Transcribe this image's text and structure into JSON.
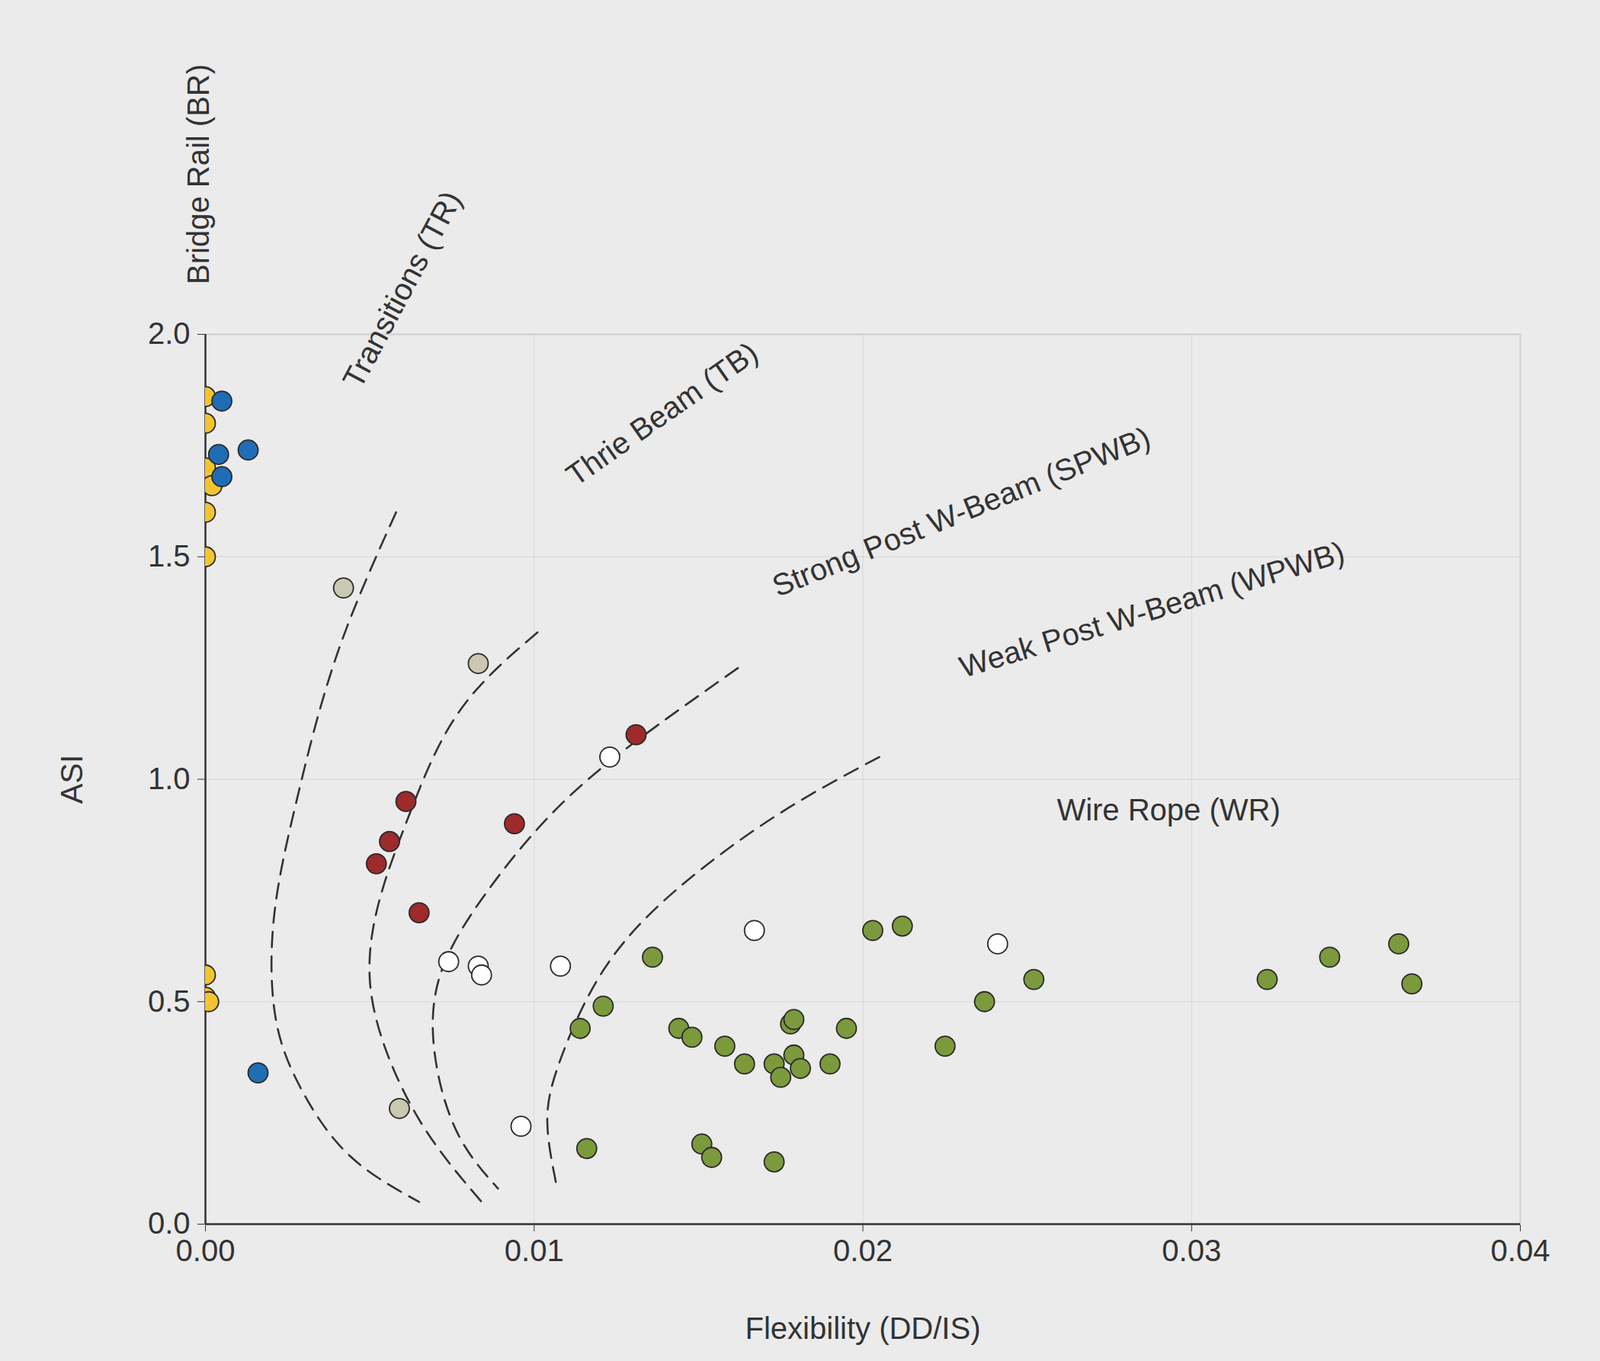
{
  "chart_data": {
    "type": "scatter",
    "x_label": "Flexibility (DD/IS)",
    "y_label": "ASI",
    "xlim": [
      0,
      0.04
    ],
    "ylim": [
      0,
      2.0
    ],
    "xticks": [
      {
        "value": 0,
        "label": "0.00"
      },
      {
        "value": 0.01,
        "label": "0.01"
      },
      {
        "value": 0.02,
        "label": "0.02"
      },
      {
        "value": 0.03,
        "label": "0.03"
      },
      {
        "value": 0.04,
        "label": "0.04"
      }
    ],
    "yticks": [
      {
        "value": 0,
        "label": "0.0"
      },
      {
        "value": 0.5,
        "label": "0.5"
      },
      {
        "value": 1.0,
        "label": "1.0"
      },
      {
        "value": 1.5,
        "label": "1.5"
      },
      {
        "value": 2.0,
        "label": "2.0"
      }
    ],
    "grid": true,
    "series": [
      {
        "type": "line",
        "color": "#333333",
        "line_style": "dashed",
        "x": [
          0.0058,
          0.004,
          0.0028,
          0.0021,
          0.0021,
          0.0028,
          0.0043,
          0.0065
        ],
        "values": [
          1.6,
          1.28,
          0.96,
          0.7,
          0.48,
          0.32,
          0.16,
          0.05
        ]
      },
      {
        "type": "line",
        "color": "#333333",
        "line_style": "dashed",
        "x": [
          0.0101,
          0.0077,
          0.0062,
          0.0053,
          0.005,
          0.0056,
          0.0068,
          0.0084
        ],
        "values": [
          1.33,
          1.15,
          0.92,
          0.73,
          0.55,
          0.37,
          0.2,
          0.05
        ]
      },
      {
        "type": "line",
        "color": "#333333",
        "line_style": "dashed",
        "x": [
          0.0162,
          0.013,
          0.0105,
          0.0084,
          0.0071,
          0.007,
          0.0077,
          0.0089
        ],
        "values": [
          1.25,
          1.08,
          0.92,
          0.73,
          0.55,
          0.37,
          0.2,
          0.08
        ]
      },
      {
        "type": "line",
        "color": "#333333",
        "line_style": "dashed",
        "x": [
          0.0205,
          0.0174,
          0.0143,
          0.0121,
          0.0108,
          0.0104,
          0.0107
        ],
        "values": [
          1.05,
          0.92,
          0.75,
          0.57,
          0.37,
          0.23,
          0.08
        ]
      },
      {
        "type": "scatter",
        "color": "#f4c430",
        "marker": "circle",
        "x": [
          0,
          0,
          0,
          0.0002,
          0,
          0,
          0,
          0,
          0.0001
        ],
        "values": [
          1.86,
          1.8,
          1.7,
          1.66,
          1.6,
          1.5,
          0.56,
          0.51,
          0.5
        ]
      },
      {
        "type": "scatter",
        "color": "#1f6db5",
        "marker": "circle",
        "x": [
          0.0005,
          0.0004,
          0.0013,
          0.0005,
          0.0016
        ],
        "values": [
          1.85,
          1.73,
          1.74,
          1.68,
          0.34
        ]
      },
      {
        "type": "scatter",
        "color": "#c9c9b1",
        "marker": "circle",
        "x": [
          0.0042,
          0.0083,
          0.0059
        ],
        "values": [
          1.43,
          1.26,
          0.26
        ]
      },
      {
        "type": "scatter",
        "color": "#9e2a2b",
        "marker": "circle",
        "x": [
          0.0131,
          0.0061,
          0.0056,
          0.0052,
          0.0094,
          0.0065
        ],
        "values": [
          1.1,
          0.95,
          0.86,
          0.81,
          0.9,
          0.7
        ]
      },
      {
        "type": "scatter",
        "color": "#ffffff",
        "marker": "circle",
        "x": [
          0.0123,
          0.0074,
          0.0083,
          0.0084,
          0.0108,
          0.0096,
          0.0167,
          0.0241
        ],
        "values": [
          1.05,
          0.59,
          0.58,
          0.56,
          0.58,
          0.22,
          0.66,
          0.63
        ]
      },
      {
        "type": "scatter",
        "color": "#7b9a3c",
        "marker": "circle",
        "x": [
          0.0136,
          0.0114,
          0.0121,
          0.0116,
          0.0144,
          0.0148,
          0.0158,
          0.0164,
          0.0173,
          0.0175,
          0.0178,
          0.0179,
          0.0179,
          0.0181,
          0.019,
          0.0195,
          0.0151,
          0.0154,
          0.0173,
          0.0203,
          0.0212,
          0.0225,
          0.0237,
          0.0252,
          0.0323,
          0.0342,
          0.0363,
          0.0367
        ],
        "values": [
          0.6,
          0.44,
          0.49,
          0.17,
          0.44,
          0.42,
          0.4,
          0.36,
          0.36,
          0.33,
          0.45,
          0.46,
          0.38,
          0.35,
          0.36,
          0.44,
          0.18,
          0.15,
          0.14,
          0.66,
          0.67,
          0.4,
          0.5,
          0.55,
          0.55,
          0.6,
          0.63,
          0.54
        ]
      }
    ],
    "annotations": [
      {
        "text": "Bridge Rail (BR)",
        "x": 0,
        "y": 2.36
      },
      {
        "text": "Transitions (TR)",
        "x": 0.006,
        "y": 2.1
      },
      {
        "text": "Thrie Beam (TB)",
        "x": 0.0139,
        "y": 1.82
      },
      {
        "text": "Strong Post W-Beam (SPWB)",
        "x": 0.023,
        "y": 1.6
      },
      {
        "text": "Weak Post W-Beam (WPWB)",
        "x": 0.0288,
        "y": 1.38
      },
      {
        "text": "Wire Rope (WR)",
        "x": 0.0293,
        "y": 0.93
      }
    ]
  }
}
